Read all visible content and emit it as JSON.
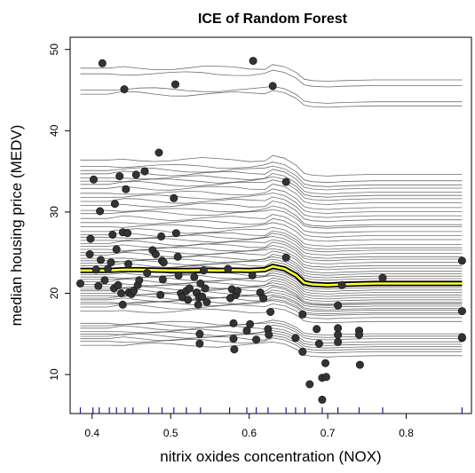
{
  "chart_data": {
    "type": "line",
    "title": "ICE of Random Forest",
    "xlabel": "nitrix oxides concentration (NOX)",
    "ylabel": "median housing price (MEDV)",
    "xlim": [
      0.372,
      0.883
    ],
    "ylim": [
      5.2,
      51.5
    ],
    "x_ticks": [
      "0.4",
      "0.5",
      "0.6",
      "0.7",
      "0.8"
    ],
    "y_ticks": [
      "10",
      "20",
      "30",
      "40",
      "50"
    ],
    "grid": false,
    "colors": {
      "ice_curves": "#555555",
      "mean_curve_outline": "#000000",
      "mean_curve": "#ffff33",
      "points": "#333333",
      "rug": "#1a1a99"
    },
    "x": [
      0.385,
      0.4,
      0.42,
      0.44,
      0.46,
      0.48,
      0.5,
      0.52,
      0.54,
      0.56,
      0.58,
      0.6,
      0.62,
      0.63,
      0.645,
      0.66,
      0.67,
      0.68,
      0.7,
      0.72,
      0.74,
      0.76,
      0.78,
      0.8,
      0.82,
      0.84,
      0.871
    ],
    "ice_curve_baselines": [
      47.7,
      47.0,
      45.0,
      44.5,
      36.4,
      35.6,
      35.1,
      34.7,
      34.2,
      33.8,
      33.4,
      32.9,
      32.3,
      31.8,
      31.3,
      30.8,
      30.2,
      29.8,
      29.2,
      28.7,
      28.2,
      27.6,
      27.2,
      26.9,
      26.5,
      26.1,
      25.8,
      25.4,
      25.0,
      24.7,
      24.3,
      24.0,
      23.7,
      23.4,
      23.1,
      22.8,
      22.6,
      22.3,
      22.0,
      21.7,
      21.4,
      21.1,
      20.8,
      20.5,
      20.3,
      20.0,
      19.7,
      19.4,
      19.2,
      18.9,
      18.7,
      18.3,
      17.8,
      16.3,
      16.0,
      15.7,
      15.3,
      15.0,
      14.7,
      14.4,
      14.1,
      13.6
    ],
    "mean_curve": [
      22.8,
      22.8,
      22.8,
      22.9,
      22.9,
      22.85,
      22.8,
      22.8,
      22.85,
      22.8,
      22.85,
      22.8,
      22.9,
      23.3,
      23.0,
      22.2,
      21.3,
      21.1,
      21.0,
      21.1,
      21.15,
      21.2,
      21.2,
      21.2,
      21.2,
      21.2,
      21.2
    ],
    "points": [
      [
        0.385,
        21.2
      ],
      [
        0.397,
        24.8
      ],
      [
        0.398,
        26.7
      ],
      [
        0.402,
        34.0
      ],
      [
        0.405,
        22.9
      ],
      [
        0.408,
        20.9
      ],
      [
        0.41,
        30.1
      ],
      [
        0.411,
        24.1
      ],
      [
        0.413,
        48.3
      ],
      [
        0.416,
        21.6
      ],
      [
        0.42,
        23.0
      ],
      [
        0.424,
        23.8
      ],
      [
        0.426,
        27.2
      ],
      [
        0.428,
        20.6
      ],
      [
        0.429,
        31.0
      ],
      [
        0.431,
        25.4
      ],
      [
        0.433,
        21.0
      ],
      [
        0.435,
        34.4
      ],
      [
        0.437,
        20.0
      ],
      [
        0.439,
        27.5
      ],
      [
        0.439,
        18.6
      ],
      [
        0.441,
        45.1
      ],
      [
        0.443,
        32.8
      ],
      [
        0.445,
        27.4
      ],
      [
        0.446,
        23.6
      ],
      [
        0.447,
        20.1
      ],
      [
        0.45,
        19.9
      ],
      [
        0.453,
        20.3
      ],
      [
        0.456,
        34.6
      ],
      [
        0.458,
        21.0
      ],
      [
        0.46,
        21.6
      ],
      [
        0.467,
        35.0
      ],
      [
        0.47,
        22.5
      ],
      [
        0.477,
        25.3
      ],
      [
        0.481,
        24.8
      ],
      [
        0.485,
        37.3
      ],
      [
        0.487,
        19.8
      ],
      [
        0.488,
        27.0
      ],
      [
        0.489,
        24.0
      ],
      [
        0.49,
        21.7
      ],
      [
        0.491,
        23.8
      ],
      [
        0.504,
        31.7
      ],
      [
        0.506,
        45.7
      ],
      [
        0.507,
        27.4
      ],
      [
        0.509,
        24.5
      ],
      [
        0.51,
        22.2
      ],
      [
        0.513,
        20.0
      ],
      [
        0.515,
        19.5
      ],
      [
        0.52,
        20.3
      ],
      [
        0.522,
        19.2
      ],
      [
        0.524,
        20.6
      ],
      [
        0.53,
        22.0
      ],
      [
        0.533,
        20.1
      ],
      [
        0.535,
        18.6
      ],
      [
        0.536,
        19.5
      ],
      [
        0.537,
        15.0
      ],
      [
        0.537,
        13.8
      ],
      [
        0.538,
        21.2
      ],
      [
        0.54,
        19.6
      ],
      [
        0.542,
        22.8
      ],
      [
        0.544,
        20.6
      ],
      [
        0.546,
        18.9
      ],
      [
        0.573,
        23.0
      ],
      [
        0.576,
        19.4
      ],
      [
        0.578,
        20.5
      ],
      [
        0.58,
        16.3
      ],
      [
        0.58,
        14.4
      ],
      [
        0.581,
        13.1
      ],
      [
        0.583,
        19.8
      ],
      [
        0.585,
        20.3
      ],
      [
        0.597,
        15.4
      ],
      [
        0.601,
        16.2
      ],
      [
        0.604,
        22.2
      ],
      [
        0.605,
        48.6
      ],
      [
        0.609,
        14.3
      ],
      [
        0.614,
        20.1
      ],
      [
        0.618,
        19.4
      ],
      [
        0.624,
        15.6
      ],
      [
        0.625,
        14.9
      ],
      [
        0.627,
        17.7
      ],
      [
        0.63,
        45.5
      ],
      [
        0.647,
        33.7
      ],
      [
        0.647,
        24.4
      ],
      [
        0.659,
        14.5
      ],
      [
        0.668,
        17.4
      ],
      [
        0.668,
        12.8
      ],
      [
        0.677,
        8.8
      ],
      [
        0.686,
        15.6
      ],
      [
        0.689,
        13.8
      ],
      [
        0.693,
        6.9
      ],
      [
        0.693,
        9.6
      ],
      [
        0.697,
        11.4
      ],
      [
        0.698,
        9.7
      ],
      [
        0.713,
        15.7
      ],
      [
        0.713,
        14.9
      ],
      [
        0.713,
        14.0
      ],
      [
        0.713,
        18.5
      ],
      [
        0.718,
        21.0
      ],
      [
        0.74,
        15.4
      ],
      [
        0.74,
        14.9
      ],
      [
        0.741,
        11.2
      ],
      [
        0.77,
        21.9
      ],
      [
        0.871,
        24.0
      ],
      [
        0.871,
        17.8
      ],
      [
        0.871,
        14.5
      ],
      [
        0.871,
        14.6
      ]
    ],
    "rug": [
      0.385,
      0.401,
      0.409,
      0.422,
      0.431,
      0.442,
      0.452,
      0.472,
      0.489,
      0.504,
      0.52,
      0.538,
      0.575,
      0.597,
      0.609,
      0.624,
      0.647,
      0.659,
      0.671,
      0.693,
      0.713,
      0.74,
      0.77,
      0.871
    ]
  }
}
